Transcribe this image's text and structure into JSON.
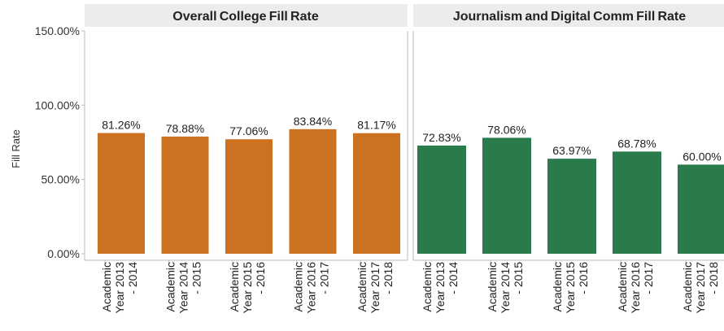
{
  "chart_data": [
    {
      "type": "bar",
      "title": "Overall College Fill Rate",
      "ylabel": "Fill Rate",
      "ylim": [
        0,
        150
      ],
      "yticks": [
        "0.00%",
        "50.00%",
        "100.00%",
        "150.00%"
      ],
      "ytick_values": [
        0,
        50,
        100,
        150
      ],
      "categories": [
        [
          "Academic",
          "Year 2013",
          "- 2014"
        ],
        [
          "Academic",
          "Year 2014",
          "- 2015"
        ],
        [
          "Academic",
          "Year 2015",
          "- 2016"
        ],
        [
          "Academic",
          "Year 2016",
          "- 2017"
        ],
        [
          "Academic",
          "Year 2017",
          "- 2018"
        ]
      ],
      "values": [
        81.26,
        78.88,
        77.06,
        83.84,
        81.17
      ],
      "labels": [
        "81.26%",
        "78.88%",
        "77.06%",
        "83.84%",
        "81.17%"
      ],
      "color": "#CC711F"
    },
    {
      "type": "bar",
      "title": "Journalism and Digital Comm Fill Rate",
      "ylim": [
        0,
        150
      ],
      "categories": [
        [
          "Academic",
          "Year 2013",
          "- 2014"
        ],
        [
          "Academic",
          "Year 2014",
          "- 2015"
        ],
        [
          "Academic",
          "Year 2015",
          "- 2016"
        ],
        [
          "Academic",
          "Year 2016",
          "- 2017"
        ],
        [
          "Academic",
          "Year 2017",
          "- 2018"
        ]
      ],
      "values": [
        72.83,
        78.06,
        63.97,
        68.78,
        60.0
      ],
      "labels": [
        "72.83%",
        "78.06%",
        "63.97%",
        "68.78%",
        "60.00%"
      ],
      "color": "#2A7B4C"
    }
  ],
  "colors": {
    "header_bg": "#ECECEC",
    "frame": "#BBBBBB"
  }
}
